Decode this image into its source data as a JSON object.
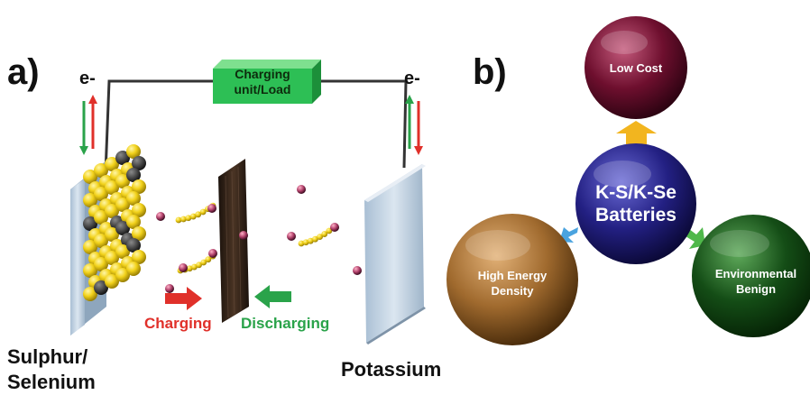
{
  "panel_a": {
    "label": "a)",
    "electron_left": "e-",
    "electron_right": "e-",
    "unit_line1": "Charging",
    "unit_line2": "unit/Load",
    "left_electrode_line1": "Sulphur/",
    "left_electrode_line2": "Selenium",
    "right_electrode": "Potassium",
    "charging_label": "Charging",
    "discharging_label": "Discharging"
  },
  "panel_b": {
    "label": "b)",
    "center_line1": "K-S/K-Se",
    "center_line2": "Batteries",
    "top": "Low Cost",
    "left_line1": "High Energy",
    "left_line2": "Density",
    "right_line1": "Environmental",
    "right_line2": "Benign"
  },
  "colors": {
    "charging": "#e0302a",
    "discharging": "#2aa34a",
    "unit_box": "#2dbf55",
    "sulfur": "#f2d21b",
    "potassium_ion": "#b0406a",
    "center_sphere": "#1d1a6e",
    "low_cost_sphere": "#6e0f2e",
    "energy_sphere": "#a06a2e",
    "environment_sphere": "#144d16",
    "arrow_top": "#f2b51f",
    "arrow_left": "#4aa3df",
    "arrow_right": "#4fb84a"
  }
}
